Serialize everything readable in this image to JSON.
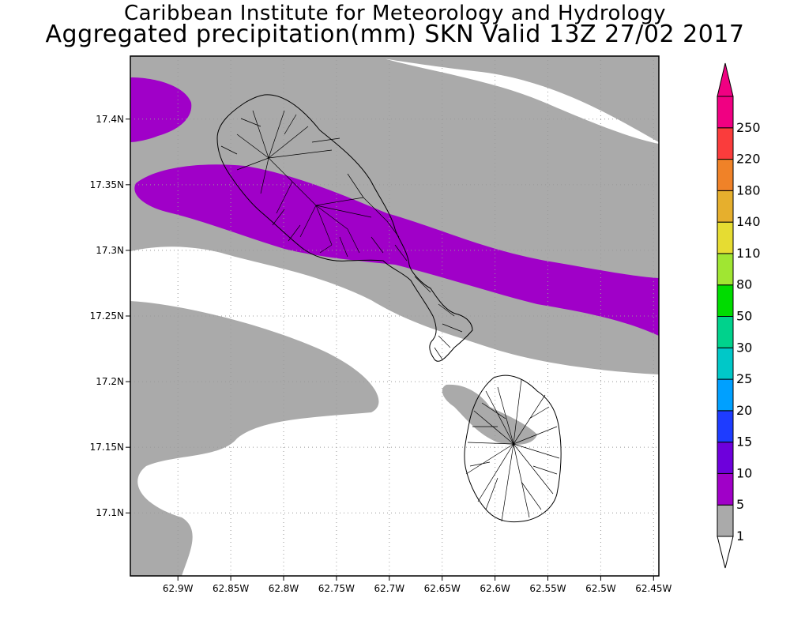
{
  "title": "Caribbean Institute for Meteorology and Hydrology",
  "subtitle": "Aggregated precipitation(mm) SKN Valid 13Z 27/02 2017",
  "map": {
    "lon_range": [
      -62.945,
      -62.445
    ],
    "lat_range": [
      17.052,
      17.448
    ],
    "grid": true,
    "lon_ticks": [
      {
        "value": -62.9,
        "label": "62.9W"
      },
      {
        "value": -62.85,
        "label": "62.85W"
      },
      {
        "value": -62.8,
        "label": "62.8W"
      },
      {
        "value": -62.75,
        "label": "62.75W"
      },
      {
        "value": -62.7,
        "label": "62.7W"
      },
      {
        "value": -62.65,
        "label": "62.65W"
      },
      {
        "value": -62.6,
        "label": "62.6W"
      },
      {
        "value": -62.55,
        "label": "62.55W"
      },
      {
        "value": -62.5,
        "label": "62.5W"
      },
      {
        "value": -62.45,
        "label": "62.45W"
      }
    ],
    "lat_ticks": [
      {
        "value": 17.4,
        "label": "17.4N"
      },
      {
        "value": 17.35,
        "label": "17.35N"
      },
      {
        "value": 17.3,
        "label": "17.3N"
      },
      {
        "value": 17.25,
        "label": "17.25N"
      },
      {
        "value": 17.2,
        "label": "17.2N"
      },
      {
        "value": 17.15,
        "label": "17.15N"
      },
      {
        "value": 17.1,
        "label": "17.1N"
      }
    ]
  },
  "legend": {
    "placement": "right",
    "bins": [
      {
        "label": "1",
        "color": "#aaaaaa"
      },
      {
        "label": "5",
        "color": "#a000c8"
      },
      {
        "label": "10",
        "color": "#6e00dc"
      },
      {
        "label": "15",
        "color": "#1e3cff"
      },
      {
        "label": "20",
        "color": "#00a0ff"
      },
      {
        "label": "25",
        "color": "#00c8c8"
      },
      {
        "label": "30",
        "color": "#00d28c"
      },
      {
        "label": "50",
        "color": "#00dc00"
      },
      {
        "label": "80",
        "color": "#a0e632"
      },
      {
        "label": "110",
        "color": "#e6dc32"
      },
      {
        "label": "140",
        "color": "#e6af2d"
      },
      {
        "label": "180",
        "color": "#f08228"
      },
      {
        "label": "220",
        "color": "#fa3c3c"
      },
      {
        "label": "250",
        "color": "#f00082"
      }
    ],
    "top_label": "250"
  }
}
